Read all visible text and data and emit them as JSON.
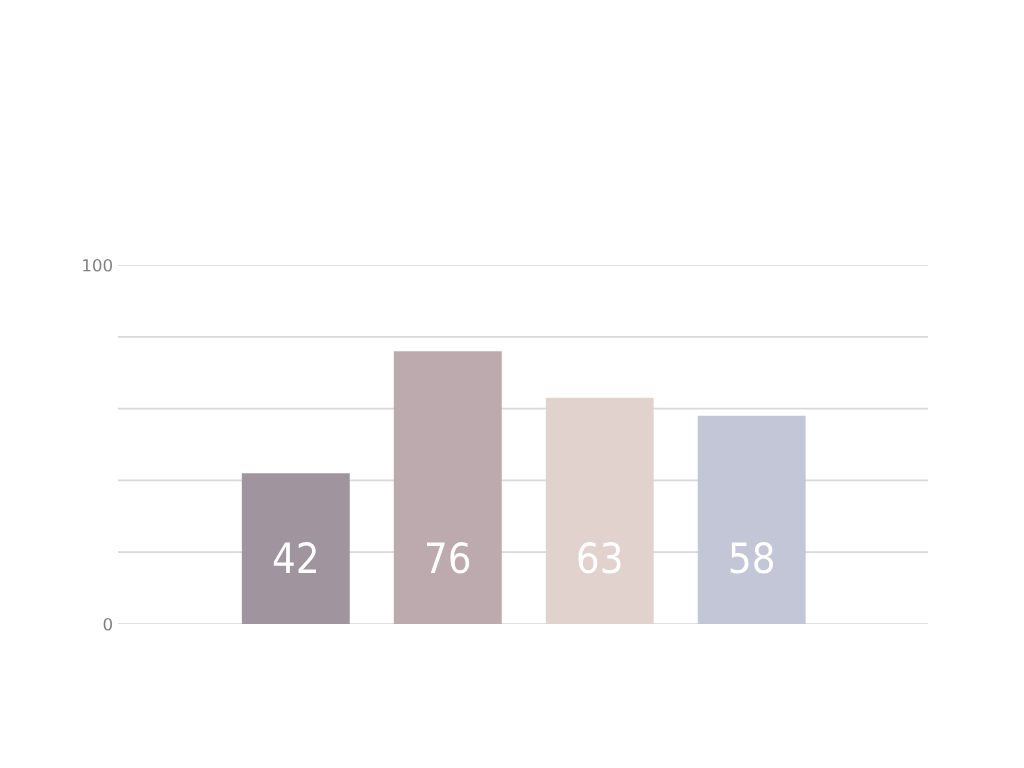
{
  "chart_data": {
    "type": "bar",
    "categories": [
      null,
      null,
      null,
      null
    ],
    "values": [
      42,
      76,
      63,
      58
    ],
    "colors": [
      "#a0949f",
      "#bcaaae",
      "#e2d2cd",
      "#c3c6d6"
    ],
    "ylim": [
      0,
      100
    ],
    "yticks": [
      0,
      {
        "value": 20,
        "label": null
      },
      {
        "value": 40,
        "label": null
      },
      {
        "value": 60,
        "label": null
      },
      {
        "value": 80,
        "label": null
      },
      100
    ],
    "grid": "y",
    "data_labels": true
  }
}
